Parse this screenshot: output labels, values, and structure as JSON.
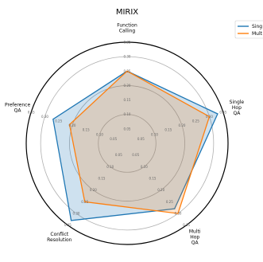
{
  "chart_data": {
    "type": "radar",
    "title": "MIRIX",
    "axes": [
      "Single\nHop\nQA",
      "Multi\nHop\nQA",
      "Conflict\nResolution",
      "Preference\nQA",
      "Function\nCalling"
    ],
    "rmax": 0.35,
    "rings": [
      0.1,
      0.2,
      0.3
    ],
    "tick_values": [
      "0.05",
      "0.10",
      "0.15",
      "0.20",
      "0.25",
      "0.30",
      "0.35"
    ],
    "series": [
      {
        "name": "Sing",
        "color": "#1f77b4",
        "fill": true,
        "values": [
          0.33,
          0.28,
          0.33,
          0.27,
          0.25
        ]
      },
      {
        "name": "Mult",
        "color": "#ff7f0e",
        "fill": true,
        "values": [
          0.3,
          0.3,
          0.25,
          0.21,
          0.25
        ]
      }
    ],
    "grid": true,
    "legend": "top-right"
  }
}
